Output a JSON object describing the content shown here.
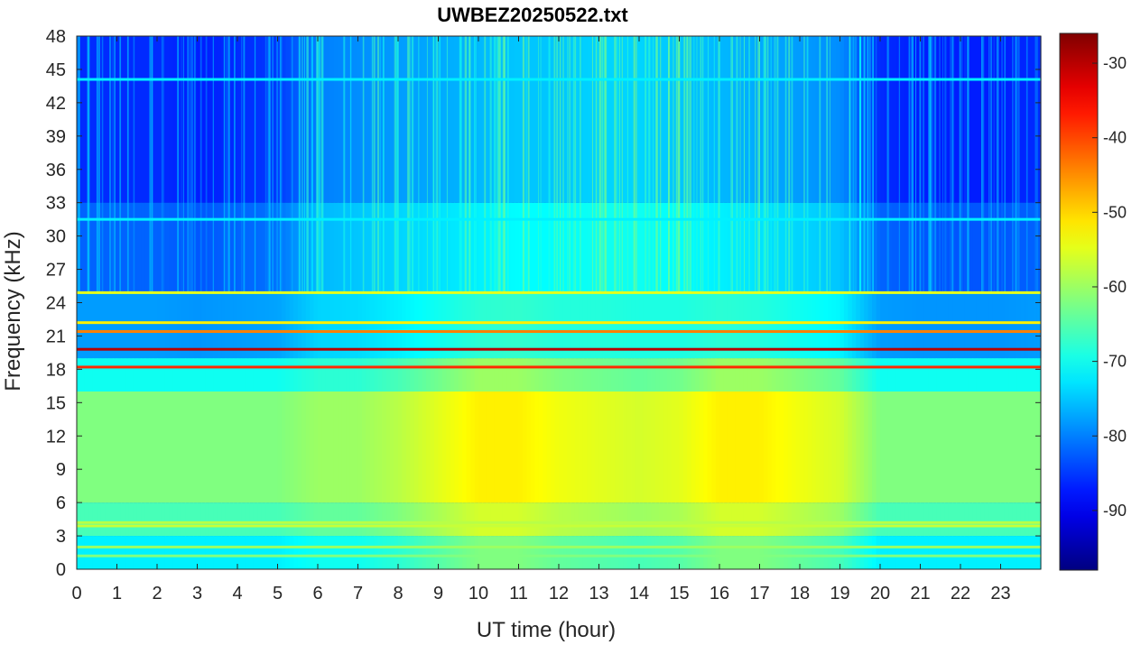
{
  "chart_data": {
    "type": "heatmap",
    "title": "UWBEZ20250522.txt",
    "xlabel": "UT time (hour)",
    "ylabel": "Frequency (kHz)",
    "xlim": [
      0,
      24
    ],
    "ylim": [
      0,
      48
    ],
    "x_ticks": [
      0,
      1,
      2,
      3,
      4,
      5,
      6,
      7,
      8,
      9,
      10,
      11,
      12,
      13,
      14,
      15,
      16,
      17,
      18,
      19,
      20,
      21,
      22,
      23
    ],
    "y_ticks": [
      0,
      3,
      6,
      9,
      12,
      15,
      18,
      21,
      24,
      27,
      30,
      33,
      36,
      39,
      42,
      45,
      48
    ],
    "colorbar": {
      "colormap": "jet",
      "clim": [
        -98,
        -26
      ],
      "ticks": [
        -30,
        -40,
        -50,
        -60,
        -70,
        -80,
        -90
      ]
    },
    "features": {
      "background_levels": {
        "hours": [
          0,
          1,
          2,
          3,
          4,
          5,
          6,
          7,
          8,
          9,
          10,
          11,
          12,
          13,
          14,
          15,
          16,
          17,
          18,
          19,
          20,
          21,
          22,
          23,
          24
        ],
        "high_band_dB": [
          -86,
          -86,
          -86,
          -87,
          -86,
          -85,
          -80,
          -79,
          -78,
          -77,
          -76,
          -75,
          -75,
          -74,
          -74,
          -75,
          -76,
          -77,
          -78,
          -79,
          -86,
          -87,
          -87,
          -87,
          -86
        ],
        "low_band_dB": [
          -62,
          -62,
          -62,
          -62,
          -62,
          -62,
          -60,
          -60,
          -58,
          -55,
          -52,
          -52,
          -54,
          -55,
          -56,
          -55,
          -52,
          -52,
          -54,
          -56,
          -62,
          -62,
          -62,
          -62,
          -62
        ]
      },
      "transmitter_lines_kHz": [
        {
          "freq": 19.8,
          "level_dB": -30
        },
        {
          "freq": 18.2,
          "level_dB": -38
        },
        {
          "freq": 21.4,
          "level_dB": -44
        },
        {
          "freq": 24.9,
          "level_dB": -55
        },
        {
          "freq": 22.2,
          "level_dB": -52
        },
        {
          "freq": 3.9,
          "level_dB": -57
        },
        {
          "freq": 4.2,
          "level_dB": -58
        },
        {
          "freq": 2.0,
          "level_dB": -60
        },
        {
          "freq": 1.2,
          "level_dB": -62
        },
        {
          "freq": 44.1,
          "level_dB": -72
        },
        {
          "freq": 31.5,
          "level_dB": -72
        }
      ]
    }
  }
}
